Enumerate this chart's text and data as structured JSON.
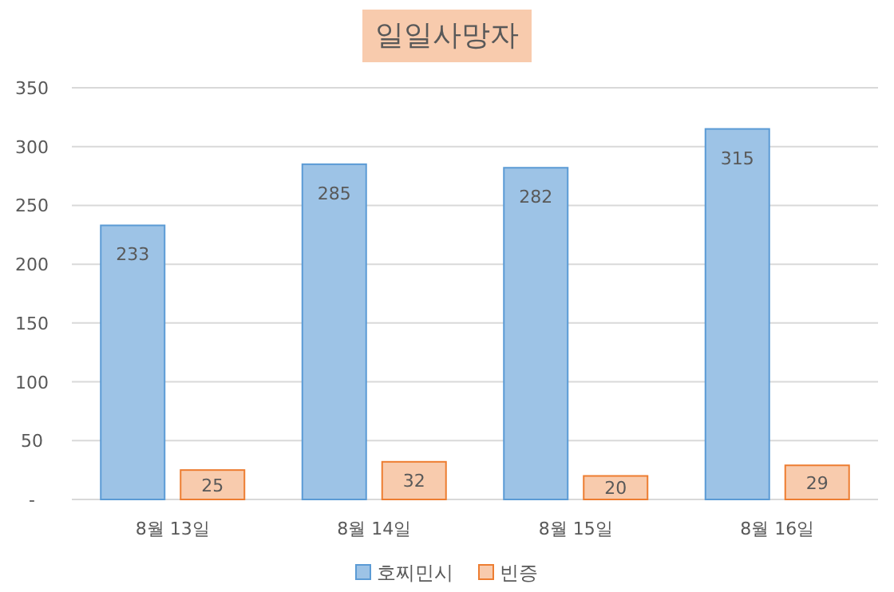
{
  "chart_data": {
    "type": "bar",
    "title": "일일사망자",
    "categories": [
      "8월 13일",
      "8월 14일",
      "8월 15일",
      "8월 16일"
    ],
    "series": [
      {
        "name": "호찌민시",
        "color": "#9dc3e6",
        "values": [
          233,
          285,
          282,
          315
        ]
      },
      {
        "name": "빈증",
        "color": "#f8cbad",
        "values": [
          25,
          32,
          20,
          29
        ]
      }
    ],
    "ylim": [
      0,
      350
    ],
    "yticks": [
      {
        "value": 0,
        "label": "-"
      },
      50,
      100,
      150,
      200,
      250,
      300,
      350
    ],
    "grid": "y",
    "legend": "bottom",
    "data_labels": true
  }
}
